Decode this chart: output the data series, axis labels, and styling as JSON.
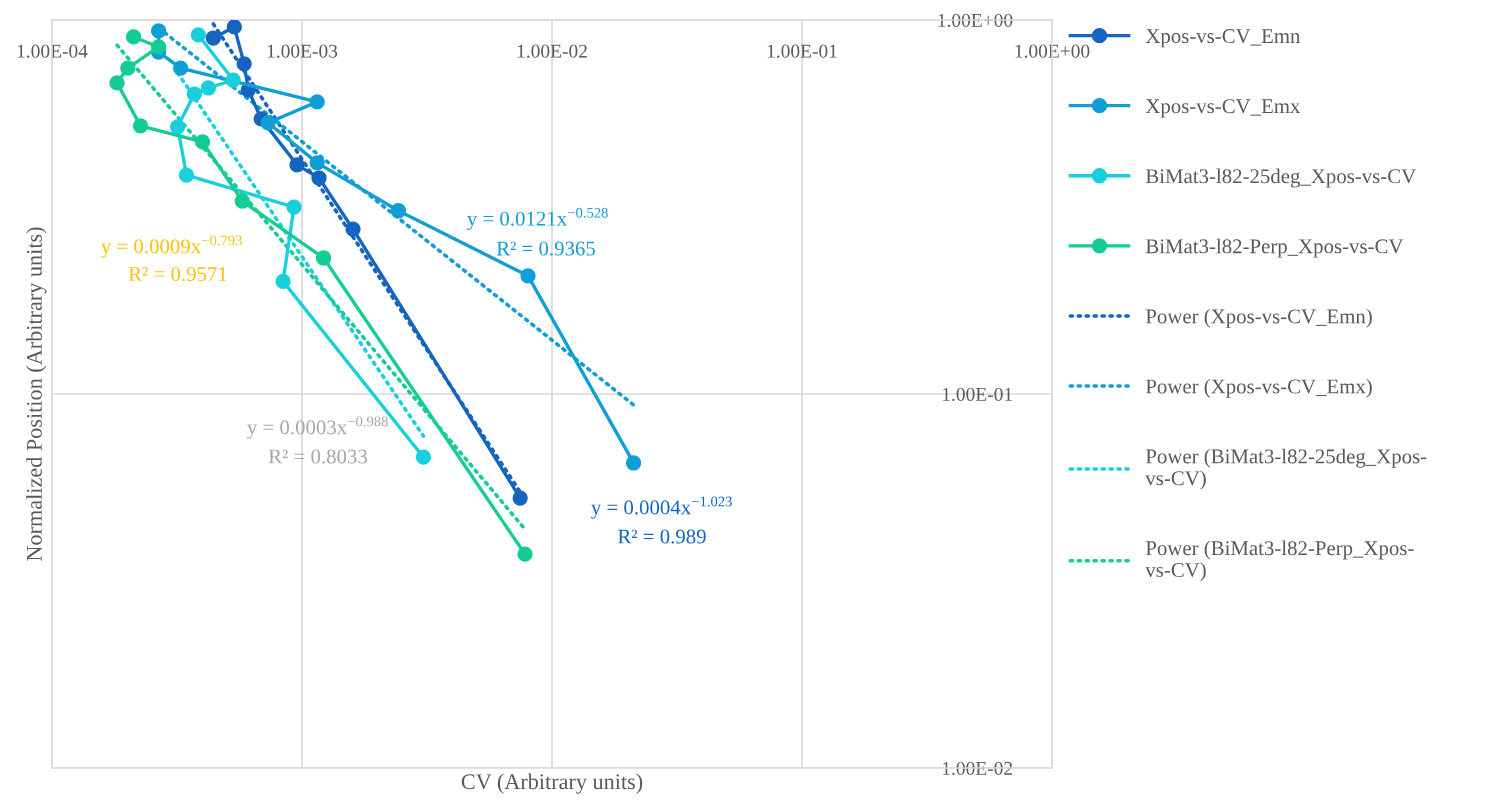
{
  "chart_data": {
    "type": "line",
    "xlabel": "CV (Arbitrary units)",
    "ylabel": "Normalized Position (Arbitrary units)",
    "log": "xy",
    "grid": true,
    "legend": "right",
    "marker": "circle",
    "line_style": "solid",
    "xlim": [
      0.0001,
      1
    ],
    "ylim": [
      0.01,
      1
    ],
    "xticks": [
      {
        "value": 0.0001,
        "label": "1.00E-04"
      },
      {
        "value": 0.001,
        "label": "1.00E-03"
      },
      {
        "value": 0.01,
        "label": "1.00E-02"
      },
      {
        "value": 0.1,
        "label": "1.00E-01"
      },
      {
        "value": 1,
        "label": "1.00E+00"
      }
    ],
    "yticks": [
      {
        "value": 0.01,
        "label": "1.00E-02"
      },
      {
        "value": 0.1,
        "label": "1.00E-01"
      },
      {
        "value": 1,
        "label": "1.00E+00"
      }
    ],
    "series": [
      {
        "name": "Xpos-vs-CV_Emn",
        "color": "#1565c0",
        "x": [
          0.000442,
          0.000536,
          0.000587,
          0.00061,
          0.000687,
          0.000955,
          0.00117,
          0.0016,
          0.00746
        ],
        "values": [
          0.895,
          0.958,
          0.763,
          0.65,
          0.544,
          0.41,
          0.378,
          0.276,
          0.0527
        ]
      },
      {
        "name": "Xpos-vs-CV_Emx",
        "color": "#0f9ed5",
        "x": [
          0.000267,
          0.000267,
          0.000327,
          0.00115,
          0.000732,
          0.00115,
          0.00243,
          0.00802,
          0.0212
        ],
        "values": [
          0.935,
          0.821,
          0.744,
          0.604,
          0.531,
          0.415,
          0.309,
          0.207,
          0.0654
        ]
      },
      {
        "name": "BiMat3-l82-25deg_Xpos-vs-CV",
        "color": "#17d0dc",
        "x": [
          0.000385,
          0.000531,
          0.000422,
          0.000371,
          0.000318,
          0.000345,
          0.000929,
          0.00084,
          0.00306
        ],
        "values": [
          0.912,
          0.691,
          0.658,
          0.634,
          0.518,
          0.385,
          0.316,
          0.2,
          0.0678
        ]
      },
      {
        "name": "BiMat3-l82-Perp_Xpos-vs-CV",
        "color": "#14cc94",
        "x": [
          0.000212,
          0.000267,
          0.000201,
          0.000182,
          0.000226,
          0.0004,
          0.000577,
          0.00122,
          0.0078
        ],
        "values": [
          0.901,
          0.847,
          0.744,
          0.679,
          0.521,
          0.472,
          0.328,
          0.231,
          0.0373
        ]
      },
      {
        "name": "Power (Xpos-vs-CV_Emn)",
        "color": "#1565c0",
        "marker": "none",
        "line_style": "dotted",
        "x": [
          0.000442,
          0.00746
        ],
        "values": [
          0.976,
          0.0547
        ]
      },
      {
        "name": "Power (Xpos-vs-CV_Emx)",
        "color": "#0f9ed5",
        "marker": "none",
        "line_style": "dotted",
        "x": [
          0.000267,
          0.0212
        ],
        "values": [
          0.953,
          0.0935
        ]
      },
      {
        "name": "Power (BiMat3-l82-25deg_Xpos-vs-CV)",
        "color": "#17d0dc",
        "marker": "none",
        "line_style": "dotted",
        "x": [
          0.000318,
          0.00306
        ],
        "values": [
          0.722,
          0.0772
        ]
      },
      {
        "name": "Power (BiMat3-l82-Perp_Xpos-vs-CV)",
        "color": "#14cc94",
        "marker": "none",
        "line_style": "dotted",
        "x": [
          0.000182,
          0.0078
        ],
        "values": [
          0.857,
          0.0435
        ]
      }
    ],
    "annotations": [
      "y = 0.0009x$^{−0.793}$",
      "R² = 0.9571",
      "y = 0.0121x$^{−0.528}$",
      "R² = 0.9365",
      "y = 0.0003x$^{−0.988}$",
      "R² = 0.8033",
      "y = 0.0004x$^{−1.023}$",
      "R² = 0.989"
    ]
  }
}
